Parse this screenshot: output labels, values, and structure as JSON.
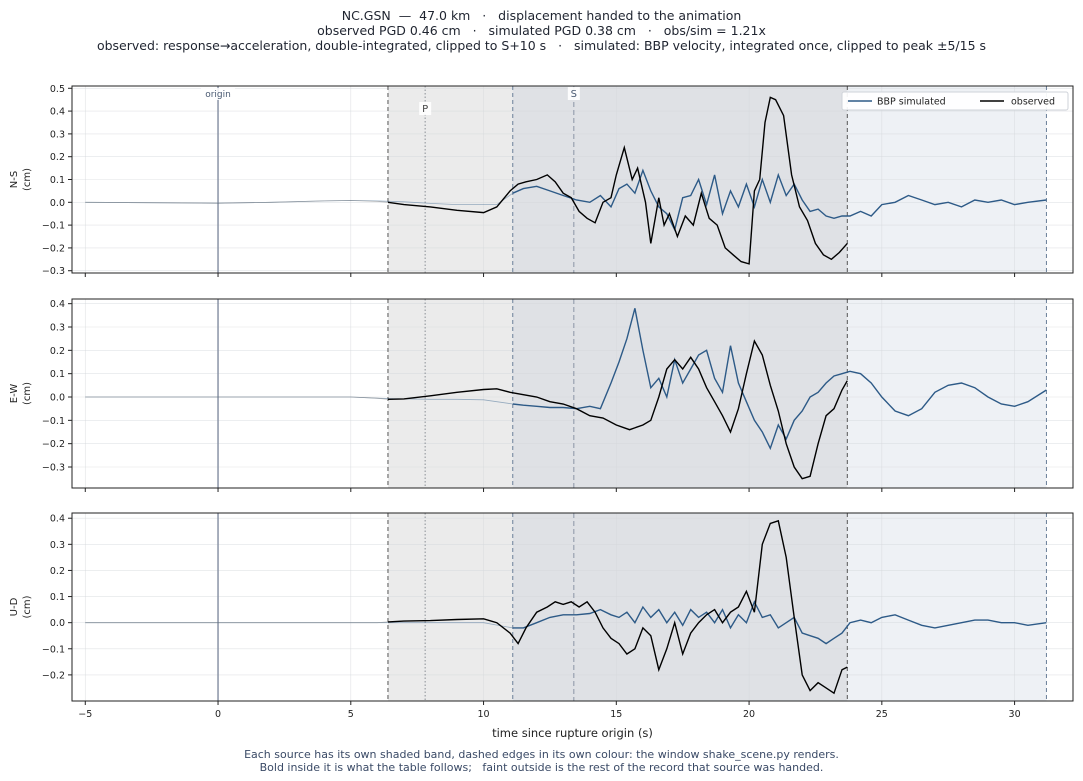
{
  "figure": {
    "title_line1": "NC.GSN  —  47.0 km   ·   displacement handed to the animation",
    "title_line2": "observed PGD 0.46 cm   ·   simulated PGD 0.38 cm   ·   obs/sim = 1.21x",
    "title_line3": "observed: response→acceleration, double-integrated, clipped to S+10 s   ·   simulated: BBP velocity, integrated once, clipped to peak ±5/15 s",
    "xlabel": "time since rupture origin (s)",
    "footnote_line1": "Each source has its own shaded band, dashed edges in its own colour: the window shake_scene.py renders.",
    "footnote_line2": "Bold inside it is what the table follows;   faint outside is the rest of the record that source was handed.",
    "legend": {
      "simulated": "BBP simulated",
      "observed": "observed"
    },
    "markers": {
      "origin": "origin",
      "p": "P",
      "s": "S"
    },
    "colors": {
      "simulated": "#2d5a87",
      "observed": "#000000",
      "marker": "#8a94a6",
      "obs_band": "#ebebeb",
      "sim_band": "#eef1f5",
      "overlap_band": "#dfe1e5"
    }
  },
  "chart_data": {
    "type": "line",
    "x_range": [
      -5.5,
      32.2
    ],
    "x_ticks": [
      -5,
      0,
      5,
      10,
      15,
      20,
      25,
      30
    ],
    "windows": {
      "observed": [
        6.4,
        23.7
      ],
      "simulated": [
        11.1,
        31.2
      ]
    },
    "markers_s": {
      "origin": 0,
      "p": 7.8,
      "s": 13.4
    },
    "legend_location": "upper right",
    "grid": true,
    "panels": [
      {
        "ylabel": "N-S\n(cm)",
        "ylim": [
          -0.31,
          0.51
        ],
        "y_ticks": [
          -0.3,
          -0.2,
          -0.1,
          0.0,
          0.1,
          0.2,
          0.3,
          0.4,
          0.5
        ],
        "observed": {
          "x": [
            -5,
            -2,
            0,
            2,
            4,
            5,
            6,
            6.4,
            7,
            8,
            9,
            10,
            10.5,
            11,
            11.3,
            11.6,
            12,
            12.4,
            12.7,
            13,
            13.3,
            13.6,
            13.9,
            14.2,
            14.5,
            14.8,
            15,
            15.3,
            15.6,
            15.8,
            16.1,
            16.3,
            16.6,
            16.8,
            17.0,
            17.3,
            17.6,
            17.9,
            18.2,
            18.5,
            18.8,
            19.1,
            19.4,
            19.7,
            20.0,
            20.2,
            20.4,
            20.6,
            20.8,
            21.0,
            21.3,
            21.6,
            21.9,
            22.2,
            22.5,
            22.8,
            23.1,
            23.4,
            23.7
          ],
          "y": [
            0.0,
            -0.002,
            -0.004,
            0.0,
            0.006,
            0.008,
            0.004,
            0.0,
            -0.01,
            -0.02,
            -0.035,
            -0.045,
            -0.02,
            0.05,
            0.08,
            0.09,
            0.1,
            0.12,
            0.09,
            0.04,
            0.02,
            -0.04,
            -0.07,
            -0.09,
            0.0,
            0.02,
            0.12,
            0.24,
            0.1,
            0.15,
            0.0,
            -0.18,
            0.02,
            -0.1,
            -0.05,
            -0.15,
            -0.06,
            -0.1,
            0.04,
            -0.07,
            -0.1,
            -0.2,
            -0.23,
            -0.26,
            -0.27,
            0.05,
            0.1,
            0.35,
            0.46,
            0.45,
            0.38,
            0.12,
            -0.02,
            -0.08,
            -0.18,
            -0.23,
            -0.25,
            -0.22,
            -0.18
          ]
        },
        "simulated": {
          "x": [
            -5,
            -2,
            0,
            2,
            4,
            5,
            6,
            7,
            8,
            9,
            10,
            10.5,
            11.1,
            11.5,
            12,
            12.5,
            13,
            13.5,
            14,
            14.4,
            14.8,
            15.1,
            15.4,
            15.7,
            16.0,
            16.3,
            16.6,
            16.9,
            17.2,
            17.5,
            17.8,
            18.1,
            18.4,
            18.7,
            19.0,
            19.3,
            19.6,
            19.9,
            20.2,
            20.5,
            20.8,
            21.1,
            21.4,
            21.7,
            22.0,
            22.3,
            22.6,
            22.9,
            23.2,
            23.5,
            23.8,
            24.2,
            24.6,
            25.0,
            25.5,
            26.0,
            26.5,
            27.0,
            27.5,
            28.0,
            28.5,
            29.0,
            29.5,
            30.0,
            30.5,
            31.2
          ],
          "y": [
            0.0,
            -0.002,
            -0.004,
            0.0,
            0.006,
            0.008,
            0.006,
            0.002,
            -0.005,
            -0.01,
            -0.01,
            -0.01,
            0.04,
            0.06,
            0.07,
            0.05,
            0.03,
            0.01,
            0.0,
            0.03,
            -0.02,
            0.06,
            0.08,
            0.04,
            0.14,
            0.05,
            -0.02,
            -0.05,
            -0.12,
            0.02,
            0.03,
            0.1,
            -0.01,
            0.12,
            -0.05,
            0.05,
            -0.02,
            0.08,
            -0.02,
            0.1,
            0.0,
            0.12,
            0.03,
            0.08,
            0.01,
            -0.04,
            -0.03,
            -0.06,
            -0.07,
            -0.06,
            -0.06,
            -0.04,
            -0.06,
            -0.01,
            0.0,
            0.03,
            0.01,
            -0.01,
            0.0,
            -0.02,
            0.01,
            0.0,
            0.01,
            -0.01,
            0.0,
            0.01
          ]
        }
      },
      {
        "ylabel": "E-W\n(cm)",
        "ylim": [
          -0.39,
          0.42
        ],
        "y_ticks": [
          -0.3,
          -0.2,
          -0.1,
          0.0,
          0.1,
          0.2,
          0.3,
          0.4
        ],
        "observed": {
          "x": [
            -5,
            -2,
            0,
            2,
            4,
            5,
            6,
            6.4,
            7,
            8,
            9,
            10,
            10.5,
            11,
            11.5,
            12,
            12.5,
            13,
            13.5,
            14,
            14.5,
            15,
            15.5,
            16,
            16.3,
            16.6,
            16.9,
            17.2,
            17.5,
            17.8,
            18.1,
            18.4,
            18.7,
            19.0,
            19.3,
            19.6,
            19.9,
            20.2,
            20.5,
            20.8,
            21.1,
            21.4,
            21.7,
            22.0,
            22.3,
            22.6,
            22.9,
            23.2,
            23.5,
            23.7
          ],
          "y": [
            0.0,
            0.0,
            0.0,
            0.0,
            0.0,
            0.0,
            -0.005,
            -0.01,
            -0.008,
            0.005,
            0.02,
            0.032,
            0.035,
            0.02,
            0.01,
            0.0,
            -0.02,
            -0.03,
            -0.05,
            -0.08,
            -0.09,
            -0.12,
            -0.14,
            -0.12,
            -0.1,
            0.0,
            0.12,
            0.16,
            0.12,
            0.17,
            0.12,
            0.04,
            -0.02,
            -0.08,
            -0.15,
            -0.05,
            0.1,
            0.24,
            0.18,
            0.05,
            -0.06,
            -0.2,
            -0.3,
            -0.35,
            -0.34,
            -0.2,
            -0.08,
            -0.05,
            0.03,
            0.07
          ]
        },
        "simulated": {
          "x": [
            -5,
            -2,
            0,
            2,
            4,
            5,
            6,
            7,
            8,
            9,
            10,
            11.1,
            11.5,
            12,
            12.5,
            13,
            13.5,
            14,
            14.4,
            14.8,
            15.1,
            15.4,
            15.7,
            16.0,
            16.3,
            16.6,
            16.9,
            17.2,
            17.5,
            17.8,
            18.1,
            18.4,
            18.7,
            19.0,
            19.3,
            19.6,
            19.9,
            20.2,
            20.5,
            20.8,
            21.1,
            21.4,
            21.7,
            22.0,
            22.3,
            22.6,
            22.9,
            23.2,
            23.5,
            23.8,
            24.2,
            24.6,
            25.0,
            25.5,
            26.0,
            26.5,
            27.0,
            27.5,
            28.0,
            28.5,
            29.0,
            29.5,
            30.0,
            30.5,
            31.2
          ],
          "y": [
            0.0,
            0.0,
            0.0,
            0.0,
            0.0,
            0.0,
            -0.005,
            -0.008,
            -0.01,
            -0.01,
            -0.012,
            -0.03,
            -0.035,
            -0.04,
            -0.045,
            -0.045,
            -0.05,
            -0.04,
            -0.05,
            0.06,
            0.15,
            0.25,
            0.38,
            0.2,
            0.04,
            0.08,
            0.0,
            0.16,
            0.06,
            0.12,
            0.18,
            0.2,
            0.08,
            0.02,
            0.22,
            0.06,
            -0.02,
            -0.1,
            -0.15,
            -0.22,
            -0.12,
            -0.18,
            -0.1,
            -0.06,
            0.0,
            0.02,
            0.06,
            0.09,
            0.1,
            0.11,
            0.1,
            0.06,
            0.0,
            -0.06,
            -0.08,
            -0.05,
            0.02,
            0.05,
            0.06,
            0.04,
            0.0,
            -0.03,
            -0.04,
            -0.02,
            0.03
          ]
        }
      },
      {
        "ylabel": "U-D\n(cm)",
        "ylim": [
          -0.3,
          0.42
        ],
        "y_ticks": [
          -0.2,
          -0.1,
          0.0,
          0.1,
          0.2,
          0.3,
          0.4
        ],
        "observed": {
          "x": [
            -5,
            -2,
            0,
            2,
            4,
            5,
            6,
            6.4,
            7,
            8,
            9,
            10,
            10.5,
            11,
            11.3,
            11.6,
            12,
            12.4,
            12.7,
            13,
            13.3,
            13.6,
            13.9,
            14.2,
            14.5,
            14.8,
            15.1,
            15.4,
            15.7,
            16.0,
            16.3,
            16.6,
            16.9,
            17.2,
            17.5,
            17.8,
            18.1,
            18.4,
            18.7,
            19.0,
            19.3,
            19.6,
            19.9,
            20.2,
            20.5,
            20.8,
            21.1,
            21.4,
            21.7,
            22.0,
            22.3,
            22.6,
            22.9,
            23.2,
            23.5,
            23.7
          ],
          "y": [
            0.0,
            0.0,
            0.0,
            0.0,
            0.0,
            0.0,
            0.0,
            0.003,
            0.006,
            0.008,
            0.012,
            0.015,
            0.0,
            -0.04,
            -0.08,
            -0.02,
            0.04,
            0.06,
            0.08,
            0.07,
            0.08,
            0.06,
            0.08,
            0.04,
            -0.02,
            -0.06,
            -0.08,
            -0.12,
            -0.1,
            -0.02,
            -0.05,
            -0.18,
            -0.1,
            0.0,
            -0.12,
            -0.04,
            0.0,
            0.03,
            0.05,
            0.0,
            0.04,
            0.06,
            0.12,
            0.04,
            0.3,
            0.38,
            0.39,
            0.25,
            0.02,
            -0.2,
            -0.26,
            -0.23,
            -0.25,
            -0.27,
            -0.18,
            -0.17
          ]
        },
        "simulated": {
          "x": [
            -5,
            -2,
            0,
            2,
            4,
            5,
            6,
            7,
            8,
            9,
            10,
            11.1,
            11.5,
            12,
            12.5,
            13,
            13.5,
            14,
            14.4,
            14.8,
            15.1,
            15.4,
            15.7,
            16.0,
            16.3,
            16.6,
            16.9,
            17.2,
            17.5,
            17.8,
            18.1,
            18.4,
            18.7,
            19.0,
            19.3,
            19.6,
            19.9,
            20.2,
            20.5,
            20.8,
            21.1,
            21.4,
            21.7,
            22.0,
            22.3,
            22.6,
            22.9,
            23.2,
            23.5,
            23.8,
            24.2,
            24.6,
            25.0,
            25.5,
            26.0,
            26.5,
            27.0,
            27.5,
            28.0,
            28.5,
            29.0,
            29.5,
            30.0,
            30.5,
            31.2
          ],
          "y": [
            0.0,
            0.0,
            0.0,
            0.0,
            0.0,
            0.0,
            0.0,
            0.0,
            0.0,
            0.0,
            0.0,
            -0.02,
            -0.02,
            0.0,
            0.02,
            0.03,
            0.03,
            0.035,
            0.05,
            0.03,
            0.02,
            0.04,
            0.0,
            0.06,
            0.02,
            0.05,
            0.0,
            0.04,
            -0.01,
            0.05,
            0.02,
            0.04,
            0.0,
            0.05,
            -0.02,
            0.03,
            0.0,
            0.08,
            0.02,
            0.03,
            -0.02,
            0.0,
            0.02,
            -0.04,
            -0.05,
            -0.06,
            -0.08,
            -0.06,
            -0.04,
            0.0,
            0.01,
            0.0,
            0.02,
            0.03,
            0.01,
            -0.01,
            -0.02,
            -0.01,
            0.0,
            0.01,
            0.01,
            0.0,
            0.0,
            -0.01,
            0.0
          ]
        }
      }
    ]
  }
}
